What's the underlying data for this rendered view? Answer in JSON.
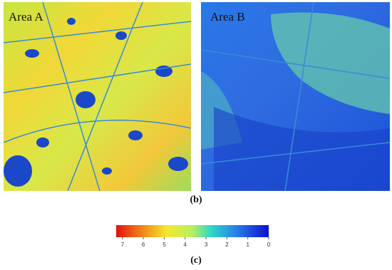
{
  "panels": [
    {
      "label": "Area A"
    },
    {
      "label": "Area B"
    }
  ],
  "caption_b": "(b)",
  "colorbar": {
    "lim": [
      7.3,
      0
    ],
    "ticks": [
      7,
      6,
      5,
      4,
      3,
      2,
      1,
      0
    ]
  },
  "caption_c": "(c)"
}
